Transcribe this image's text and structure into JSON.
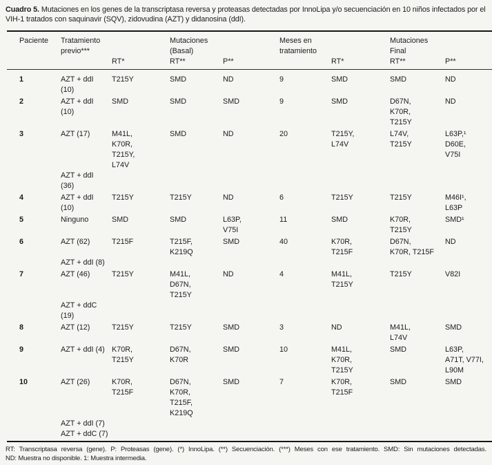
{
  "title": {
    "label": "Cuadro 5.",
    "text": "Mutaciones en los genes de la transcriptasa reversa y proteasas detectadas por InnoLipa y/o secuenciación en 10 niños infectados por el VIH-1 tratados con saquinavir (SQV), zidovudina (AZT) y didanosina (ddI)."
  },
  "colors": {
    "background": "#f5f5f2",
    "text": "#1b1b1b",
    "rule": "#161616"
  },
  "table": {
    "header": [
      {
        "id": "paciente",
        "lines": [
          "Paciente"
        ]
      },
      {
        "id": "tratamiento-previo",
        "lines": [
          "Tratamiento",
          "previo***"
        ]
      },
      {
        "id": "rt-innolipa-basal",
        "lines": [
          "",
          "",
          "RT*"
        ]
      },
      {
        "id": "rt-secuenciacion-basal",
        "lines": [
          "Mutaciones",
          "(Basal)",
          "RT**"
        ]
      },
      {
        "id": "p-basal",
        "lines": [
          "",
          "",
          "P**"
        ]
      },
      {
        "id": "meses-en-tratamiento",
        "lines": [
          "Meses en",
          "tratamiento"
        ]
      },
      {
        "id": "rt-innolipa-final",
        "lines": [
          "",
          "",
          "RT*"
        ]
      },
      {
        "id": "rt-secuenciacion-final",
        "lines": [
          "Mutaciones",
          "Final",
          "RT**"
        ]
      },
      {
        "id": "p-final",
        "lines": [
          "",
          "",
          "P**"
        ]
      }
    ],
    "rows": [
      {
        "paciente": "1",
        "tratamiento": [
          "AZT + ddI",
          "(10)"
        ],
        "rt_basal_innolipa": [
          "T215Y"
        ],
        "rt_basal_sec": [
          "SMD"
        ],
        "p_basal": [
          "ND"
        ],
        "meses": "9",
        "rt_final_innolipa": [
          "SMD"
        ],
        "rt_final_sec": [
          "SMD"
        ],
        "p_final": [
          "ND"
        ]
      },
      {
        "paciente": "2",
        "tratamiento": [
          "AZT + ddI",
          "(10)"
        ],
        "rt_basal_innolipa": [
          "SMD"
        ],
        "rt_basal_sec": [
          "SMD"
        ],
        "p_basal": [
          "SMD"
        ],
        "meses": "9",
        "rt_final_innolipa": [
          "SMD"
        ],
        "rt_final_sec": [
          "D67N,",
          "K70R,",
          "T215Y"
        ],
        "p_final": [
          "ND"
        ]
      },
      {
        "paciente": "3",
        "tratamiento": [
          "AZT (17)",
          "",
          "",
          "",
          "AZT + ddI",
          "(36)"
        ],
        "rt_basal_innolipa": [
          "M41L,",
          "K70R,",
          "T215Y,",
          "L74V"
        ],
        "rt_basal_sec": [
          "SMD"
        ],
        "p_basal": [
          "ND"
        ],
        "meses": "20",
        "rt_final_innolipa": [
          "T215Y,",
          "L74V"
        ],
        "rt_final_sec": [
          "L74V,",
          "T215Y"
        ],
        "p_final": [
          "L63P,¹",
          "D60E,",
          "V75I"
        ]
      },
      {
        "paciente": "4",
        "tratamiento": [
          "AZT + ddI",
          "(10)"
        ],
        "rt_basal_innolipa": [
          "T215Y"
        ],
        "rt_basal_sec": [
          "T215Y"
        ],
        "p_basal": [
          "ND"
        ],
        "meses": "6",
        "rt_final_innolipa": [
          "T215Y"
        ],
        "rt_final_sec": [
          "T215Y"
        ],
        "p_final": [
          "M46I¹,",
          "L63P"
        ]
      },
      {
        "paciente": "5",
        "tratamiento": [
          "Ninguno"
        ],
        "rt_basal_innolipa": [
          "SMD"
        ],
        "rt_basal_sec": [
          "SMD"
        ],
        "p_basal": [
          "L63P,",
          "V75I"
        ],
        "meses": "11",
        "rt_final_innolipa": [
          "SMD"
        ],
        "rt_final_sec": [
          "K70R,",
          "T215Y"
        ],
        "p_final": [
          "SMD¹"
        ]
      },
      {
        "paciente": "6",
        "tratamiento": [
          "AZT (62)",
          "",
          "AZT + ddI (8)"
        ],
        "rt_basal_innolipa": [
          "T215F"
        ],
        "rt_basal_sec": [
          "T215F,",
          "K219Q"
        ],
        "p_basal": [
          "SMD"
        ],
        "meses": "40",
        "rt_final_innolipa": [
          "K70R,",
          "T215F"
        ],
        "rt_final_sec": [
          "D67N,",
          "K70R, T215F"
        ],
        "p_final": [
          "ND"
        ]
      },
      {
        "paciente": "7",
        "tratamiento": [
          "AZT (46)",
          "",
          "",
          "AZT + ddC",
          "(19)"
        ],
        "rt_basal_innolipa": [
          "T215Y"
        ],
        "rt_basal_sec": [
          "M41L,",
          "D67N,",
          "T215Y"
        ],
        "p_basal": [
          "ND"
        ],
        "meses": "4",
        "rt_final_innolipa": [
          "M41L,",
          "T215Y"
        ],
        "rt_final_sec": [
          "T215Y"
        ],
        "p_final": [
          "V82I"
        ]
      },
      {
        "paciente": "8",
        "tratamiento": [
          "AZT (12)"
        ],
        "rt_basal_innolipa": [
          "T215Y"
        ],
        "rt_basal_sec": [
          "T215Y"
        ],
        "p_basal": [
          "SMD"
        ],
        "meses": "3",
        "rt_final_innolipa": [
          "ND"
        ],
        "rt_final_sec": [
          "M41L,",
          "L74V"
        ],
        "p_final": [
          "SMD"
        ]
      },
      {
        "paciente": "9",
        "tratamiento": [
          "AZT + ddI (4)"
        ],
        "rt_basal_innolipa": [
          "K70R,",
          "T215Y"
        ],
        "rt_basal_sec": [
          "D67N,",
          "K70R"
        ],
        "p_basal": [
          "SMD"
        ],
        "meses": "10",
        "rt_final_innolipa": [
          "M41L,",
          "K70R,",
          "T215Y"
        ],
        "rt_final_sec": [
          "SMD"
        ],
        "p_final": [
          "L63P,",
          "A71T, V77I,",
          "L90M"
        ]
      },
      {
        "paciente": "10",
        "tratamiento": [
          "AZT (26)",
          "",
          "",
          "",
          "AZT + ddI (7)",
          "AZT + ddC (7)"
        ],
        "rt_basal_innolipa": [
          "K70R,",
          "T215F"
        ],
        "rt_basal_sec": [
          "D67N,",
          "K70R,",
          "T215F,",
          "K219Q"
        ],
        "p_basal": [
          "SMD"
        ],
        "meses": "7",
        "rt_final_innolipa": [
          "K70R,",
          "T215F"
        ],
        "rt_final_sec": [
          "SMD"
        ],
        "p_final": [
          "SMD"
        ]
      }
    ]
  },
  "footnotes": [
    "RT: Transcriptasa reversa (gene). P: Proteasas (gene). (*) InnoLipa. (**) Secuenciación. (***) Meses con ese tratamiento. SMD: Sin mutaciones detectadas.",
    "ND: Muestra no disponible. 1: Muestra intermedia."
  ]
}
